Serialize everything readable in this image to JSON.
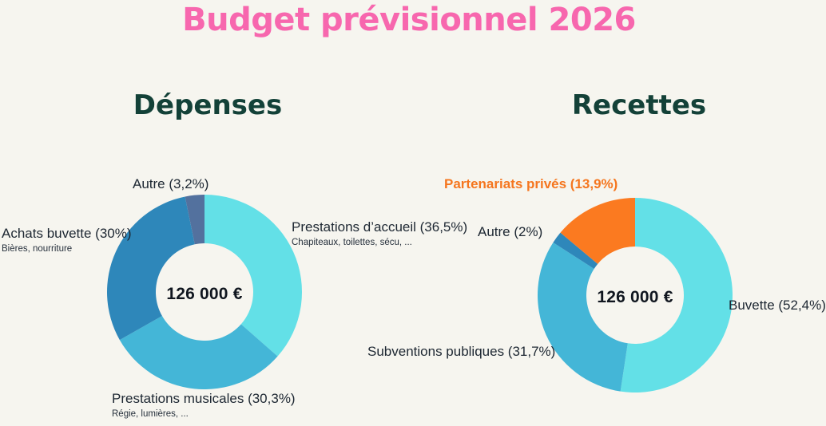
{
  "page": {
    "title": "Budget prévisionnel 2026",
    "background_color": "#f6f5ef",
    "title_color": "#f767ae",
    "heading_color": "#134138"
  },
  "chart_data": [
    {
      "type": "pie",
      "subtype": "donut",
      "title": "Dépenses",
      "center_label": "126 000 €",
      "total_eur": 126000,
      "legend_position": "around",
      "slices": [
        {
          "id": "prestations-accueil",
          "label": "Prestations d'accueil",
          "pct": 36.5,
          "display": "Prestations d’accueil (36,5%)",
          "sublabel": "Chapiteaux, toilettes, sécu, ...",
          "color": "#63e0e7"
        },
        {
          "id": "prestations-musicales",
          "label": "Prestations musicales",
          "pct": 30.3,
          "display": "Prestations musicales (30,3%)",
          "sublabel": "Régie, lumières, ...",
          "color": "#44b6d7"
        },
        {
          "id": "achats-buvette",
          "label": "Achats buvette",
          "pct": 30,
          "display": "Achats buvette (30%)",
          "sublabel": "Bières, nourriture",
          "color": "#2e87ba"
        },
        {
          "id": "autre",
          "label": "Autre",
          "pct": 3.2,
          "display": "Autre (3,2%)",
          "sublabel": "",
          "color": "#53719e"
        }
      ]
    },
    {
      "type": "pie",
      "subtype": "donut",
      "title": "Recettes",
      "center_label": "126 000 €",
      "total_eur": 126000,
      "legend_position": "around",
      "slices": [
        {
          "id": "buvette",
          "label": "Buvette",
          "pct": 52.4,
          "display": "Buvette (52,4%)",
          "sublabel": "",
          "color": "#63e0e7"
        },
        {
          "id": "subventions-publiques",
          "label": "Subventions publiques",
          "pct": 31.7,
          "display": "Subventions publiques (31,7%)",
          "sublabel": "",
          "color": "#44b6d7"
        },
        {
          "id": "autre",
          "label": "Autre",
          "pct": 2,
          "display": "Autre (2%)",
          "sublabel": "",
          "color": "#2e87ba"
        },
        {
          "id": "partenariats-prives",
          "label": "Partenariats privés",
          "pct": 13.9,
          "display": "Partenariats privés (13,9%)",
          "sublabel": "",
          "color": "#fb7a20",
          "label_color": "#f5761f"
        }
      ]
    }
  ]
}
